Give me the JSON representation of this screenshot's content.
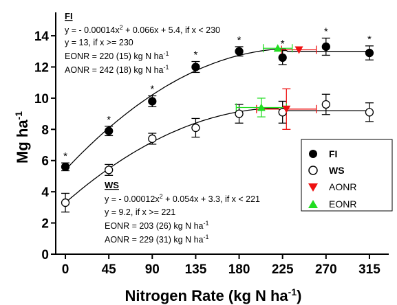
{
  "chart_data": {
    "type": "scatter",
    "title": "",
    "xlabel": "Nitrogen Rate (kg N ha",
    "xlabel_sup": "-1",
    "xlabel_close": ")",
    "ylabel": "Mg ha",
    "ylabel_sup": "-1",
    "xlim": [
      -10,
      335
    ],
    "ylim": [
      0,
      15.5
    ],
    "x_ticks": [
      0,
      45,
      90,
      135,
      180,
      225,
      270,
      315
    ],
    "y_ticks": [
      0,
      2,
      4,
      6,
      8,
      10,
      12,
      14
    ],
    "grid": false,
    "legend_position": "right",
    "series": [
      {
        "name": "FI",
        "marker": "filled-circle",
        "color": "#000000",
        "x": [
          0,
          45,
          90,
          135,
          180,
          225,
          270,
          315
        ],
        "y": [
          5.6,
          7.9,
          9.8,
          12.0,
          13.0,
          12.6,
          13.3,
          12.9
        ],
        "err": [
          0.25,
          0.3,
          0.35,
          0.35,
          0.3,
          0.45,
          0.55,
          0.45
        ],
        "significance": [
          "*",
          "*",
          "*",
          "*",
          "*",
          "*",
          "*",
          "*"
        ]
      },
      {
        "name": "WS",
        "marker": "open-circle",
        "color": "#000000",
        "x": [
          0,
          45,
          90,
          135,
          180,
          225,
          270,
          315
        ],
        "y": [
          3.3,
          5.4,
          7.4,
          8.1,
          9.0,
          9.1,
          9.6,
          9.1
        ],
        "err": [
          0.6,
          0.35,
          0.35,
          0.6,
          0.6,
          0.7,
          0.65,
          0.6
        ]
      },
      {
        "name": "AONR",
        "marker": "triangle-down",
        "color": "#ee1111",
        "points": [
          {
            "group": "FI",
            "x": 242,
            "y": 13.1,
            "xerr": 18
          },
          {
            "group": "WS",
            "x": 229,
            "y": 9.3,
            "xerr": 31,
            "yerr": 1.3
          }
        ]
      },
      {
        "name": "EONR",
        "marker": "triangle-up",
        "color": "#22dd22",
        "points": [
          {
            "group": "FI",
            "x": 220,
            "y": 13.2,
            "xerr": 15
          },
          {
            "group": "WS",
            "x": 203,
            "y": 9.4,
            "xerr": 26,
            "yerr": 0.6
          }
        ]
      }
    ],
    "fits": [
      {
        "group": "FI",
        "a": -0.00014,
        "b": 0.066,
        "c": 5.4,
        "plateau": 13,
        "join": 230
      },
      {
        "group": "WS",
        "a": -0.00012,
        "b": 0.054,
        "c": 3.3,
        "plateau": 9.2,
        "join": 221
      }
    ],
    "annotations": {
      "fi": {
        "title": "FI",
        "line1_pre": "y = - 0.00014x",
        "line1_post": " + 0.066x + 5.4, if x < 230",
        "line2": "y = 13, if x >= 230",
        "line3_pre": "EONR = 220 (15) kg N ha",
        "line4_pre": "AONR = 242 (18) kg N ha"
      },
      "ws": {
        "title": "WS",
        "line1_pre": "y = - 0.00012x",
        "line1_post": " + 0.054x + 3.3, if x < 221",
        "line2": "y = 9.2, if x >= 221",
        "line3_pre": "EONR = 203 (26) kg N ha",
        "line4_pre": "AONR = 229 (31) kg N ha"
      },
      "sq": "2",
      "neg": "-1"
    },
    "legend": [
      "FI",
      "WS",
      "AONR",
      "EONR"
    ]
  }
}
